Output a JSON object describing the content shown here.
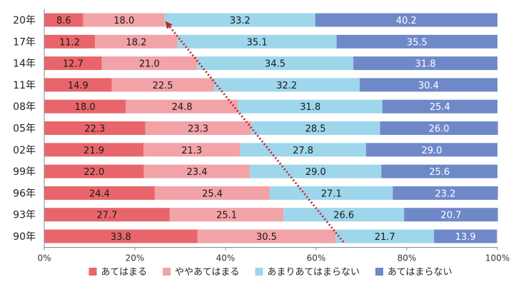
{
  "chart_data": {
    "type": "bar",
    "orientation": "horizontal",
    "stacked": true,
    "categories": [
      "20年",
      "17年",
      "14年",
      "11年",
      "08年",
      "05年",
      "02年",
      "99年",
      "96年",
      "93年",
      "90年"
    ],
    "series": [
      {
        "name": "あてはまる",
        "color": "#e8666b",
        "values": [
          8.6,
          11.2,
          12.7,
          14.9,
          18.0,
          22.3,
          21.9,
          22.0,
          24.4,
          27.7,
          33.8
        ]
      },
      {
        "name": "ややあてはまる",
        "color": "#f2a3a7",
        "values": [
          18.0,
          18.2,
          21.0,
          22.5,
          24.8,
          23.3,
          21.3,
          23.4,
          25.4,
          25.1,
          30.5
        ]
      },
      {
        "name": "あまりあてはまらない",
        "color": "#9ed6ec",
        "values": [
          33.2,
          35.1,
          34.5,
          32.2,
          31.8,
          28.5,
          27.8,
          29.0,
          27.1,
          26.6,
          21.7
        ]
      },
      {
        "name": "あてはまらない",
        "color": "#6f88c8",
        "values": [
          40.2,
          35.5,
          31.8,
          30.4,
          25.4,
          26.0,
          29.0,
          25.6,
          23.2,
          20.7,
          13.9
        ]
      }
    ],
    "value_labels": [
      [
        "8.6",
        "11.2",
        "12.7",
        "14.9",
        "18.0",
        "22.3",
        "21.9",
        "22.0",
        "24.4",
        "27.7",
        "33.8"
      ],
      [
        "18.0",
        "18.2",
        "21.0",
        "22.5",
        "24.8",
        "23.3",
        "21.3",
        "23.4",
        "25.4",
        "25.1",
        "30.5"
      ],
      [
        "33.2",
        "35.1",
        "34.5",
        "32.2",
        "31.8",
        "28.5",
        "27.8",
        "29.0",
        "27.1",
        "26.6",
        "21.7"
      ],
      [
        "40.2",
        "35.5",
        "31.8",
        "30.4",
        "25.4",
        "26.0",
        "29.0",
        "25.6",
        "23.2",
        "20.7",
        "13.9"
      ]
    ],
    "xlim": [
      0,
      100
    ],
    "x_ticks": [
      "0%",
      "20%",
      "40%",
      "60%",
      "80%",
      "100%"
    ],
    "legend_position": "bottom",
    "grid": false,
    "annotation": {
      "type": "dotted-arrow",
      "color": "#c0282d",
      "from": {
        "category": "90年",
        "value": 66
      },
      "to": {
        "category": "20年",
        "value": 27
      }
    }
  }
}
